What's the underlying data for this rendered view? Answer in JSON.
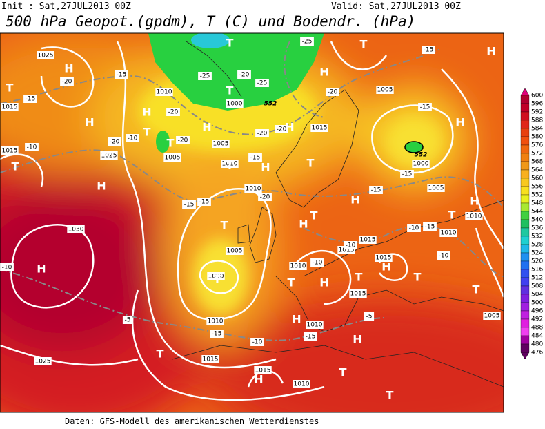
{
  "header": {
    "init": "Init : Sat,27JUL2013 00Z",
    "valid": "Valid: Sat,27JUL2013 00Z",
    "title": "500 hPa Geopot.(gpdm), T (C) und Bodendr. (hPa)"
  },
  "footer": "Daten: GFS-Modell des amerikanischen Wetterdienstes",
  "legend": {
    "levels": [
      "600",
      "596",
      "592",
      "588",
      "584",
      "580",
      "576",
      "572",
      "568",
      "564",
      "560",
      "556",
      "552",
      "548",
      "544",
      "540",
      "536",
      "532",
      "528",
      "524",
      "520",
      "516",
      "512",
      "508",
      "504",
      "500",
      "496",
      "492",
      "488",
      "484",
      "480",
      "476"
    ],
    "colors": [
      "#e0007a",
      "#b00030",
      "#c00028",
      "#d01020",
      "#e02818",
      "#e84010",
      "#f05010",
      "#f06810",
      "#f08010",
      "#f09818",
      "#f8b020",
      "#f8c820",
      "#f8e020",
      "#e8f020",
      "#a8e830",
      "#40d040",
      "#20c060",
      "#20c8a0",
      "#20d0d0",
      "#20b8e8",
      "#2090f0",
      "#2070f0",
      "#3050f0",
      "#4040f0",
      "#6030e0",
      "#8020e0",
      "#a020e0",
      "#c020e0",
      "#e020e0",
      "#f040f0",
      "#a000a0",
      "#600060"
    ]
  },
  "map": {
    "centers": [
      "H",
      "H",
      "T",
      "H",
      "T",
      "T",
      "H",
      "T",
      "T",
      "H",
      "H",
      "T",
      "H",
      "H",
      "T",
      "H",
      "T",
      "H",
      "T",
      "H",
      "H",
      "T",
      "H",
      "T",
      "T",
      "H",
      "T",
      "T",
      "H",
      "T",
      "H",
      "T",
      "T",
      "H",
      "H",
      "T",
      "H",
      "T",
      "T"
    ],
    "isobar_labels": [
      "1025",
      "1015",
      "1010",
      "1000",
      "1005",
      "1015",
      "1025",
      "1015",
      "1005",
      "1000",
      "1005",
      "1010",
      "1030",
      "1005",
      "1000",
      "1010",
      "1015",
      "1015",
      "1015",
      "1010",
      "1010",
      "1015",
      "1010",
      "1010",
      "1005",
      "1015",
      "1025",
      "1015",
      "1010",
      "1005",
      "1010"
    ],
    "temperature_labels": [
      "-25",
      "-25",
      "-20",
      "-25",
      "-20",
      "-15",
      "-15",
      "-20",
      "-20",
      "-15",
      "-20",
      "-20",
      "-15",
      "-10",
      "-10",
      "-20",
      "-20",
      "-15",
      "-15",
      "-15",
      "-15",
      "-20",
      "-15",
      "-10",
      "-15",
      "-10",
      "-10",
      "-10",
      "-10",
      "-5",
      "-15",
      "-10",
      "-5",
      "-15"
    ],
    "geopotential_labels": [
      "552",
      "552"
    ]
  }
}
